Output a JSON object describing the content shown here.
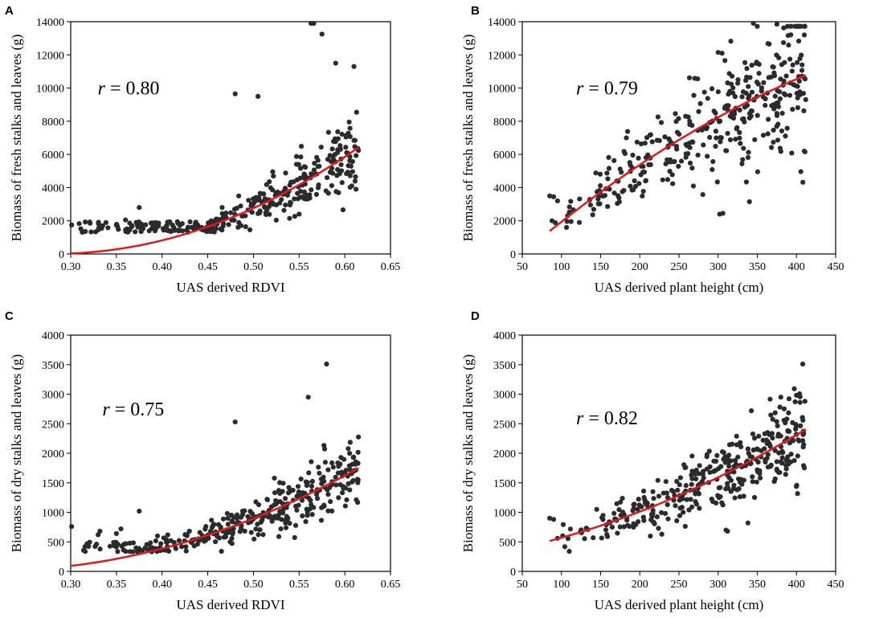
{
  "chart_data": [
    {
      "id": "A",
      "panel_label": "A",
      "type": "scatter",
      "xlabel": "UAS derived RDVI",
      "ylabel": "Biomass of fresh stalks and leaves (g)",
      "xlim": [
        0.3,
        0.65
      ],
      "ylim": [
        0,
        14000
      ],
      "xticks": [
        0.3,
        0.35,
        0.4,
        0.45,
        0.5,
        0.55,
        0.6,
        0.65
      ],
      "yticks": [
        0,
        2000,
        4000,
        6000,
        8000,
        10000,
        12000,
        14000
      ],
      "xtick_labels": [
        "0.30",
        "0.35",
        "0.40",
        "0.45",
        "0.50",
        "0.55",
        "0.60",
        "0.65"
      ],
      "ytick_labels": [
        "0",
        "2000",
        "4000",
        "6000",
        "8000",
        "10000",
        "12000",
        "14000"
      ],
      "annotation": {
        "var": "r",
        "text": " = 0.80",
        "x": 0.305,
        "y": 10000
      },
      "fit": {
        "x_range": [
          0.3,
          0.615
        ],
        "coef": [
          57786,
          -32590,
          4607
        ]
      },
      "scatter": {
        "seed": 11,
        "n": 340,
        "x_range": [
          0.3,
          0.615
        ],
        "x_bias": 0.6,
        "noise_scale": 0.22,
        "floor": 1300,
        "extra_points": [
          [
            0.301,
            1750
          ],
          [
            0.33,
            1450
          ],
          [
            0.335,
            1700
          ],
          [
            0.35,
            1750
          ],
          [
            0.36,
            2050
          ],
          [
            0.375,
            2800
          ],
          [
            0.39,
            1600
          ],
          [
            0.48,
            9650
          ],
          [
            0.505,
            9500
          ],
          [
            0.563,
            13900
          ],
          [
            0.566,
            13900
          ],
          [
            0.575,
            13250
          ],
          [
            0.59,
            11500
          ],
          [
            0.61,
            11300
          ],
          [
            0.55,
            2400
          ],
          [
            0.54,
            2950
          ],
          [
            0.535,
            2950
          ]
        ]
      }
    },
    {
      "id": "B",
      "panel_label": "B",
      "type": "scatter",
      "xlabel": "UAS derived plant height (cm)",
      "ylabel": "Biomass of fresh stalks and leaves (g)",
      "xlim": [
        50,
        450
      ],
      "ylim": [
        0,
        14000
      ],
      "xticks": [
        50,
        100,
        150,
        200,
        250,
        300,
        350,
        400,
        450
      ],
      "yticks": [
        0,
        2000,
        4000,
        6000,
        8000,
        10000,
        12000,
        14000
      ],
      "xtick_labels": [
        "50",
        "100",
        "150",
        "200",
        "250",
        "300",
        "350",
        "400",
        "450"
      ],
      "ytick_labels": [
        "0",
        "2000",
        "4000",
        "6000",
        "8000",
        "10000",
        "12000",
        "14000"
      ],
      "annotation": {
        "var": "r",
        "text": " = 0.79",
        "x": 90,
        "y": 10000
      },
      "fit": {
        "x_range": [
          85,
          412
        ],
        "coef": [
          -0.0284,
          42.85,
          -2064
        ]
      },
      "scatter": {
        "seed": 23,
        "n": 350,
        "x_range": [
          85,
          412
        ],
        "x_bias": 0.55,
        "noise_scale": 0.25,
        "floor": 1300,
        "extra_points": [
          [
            85,
            3500
          ],
          [
            90,
            3450
          ],
          [
            95,
            3200
          ],
          [
            88,
            2000
          ],
          [
            345,
            13900
          ],
          [
            375,
            13850
          ],
          [
            410,
            13200
          ],
          [
            300,
            12150
          ],
          [
            305,
            12100
          ],
          [
            340,
            3150
          ],
          [
            302,
            2400
          ],
          [
            306,
            2450
          ],
          [
            410,
            6200
          ]
        ]
      }
    },
    {
      "id": "C",
      "panel_label": "C",
      "type": "scatter",
      "xlabel": "UAS derived RDVI",
      "ylabel": "Biomass of dry stalks and leaves (g)",
      "xlim": [
        0.3,
        0.65
      ],
      "ylim": [
        0,
        4000
      ],
      "xticks": [
        0.3,
        0.35,
        0.4,
        0.45,
        0.5,
        0.55,
        0.6,
        0.65
      ],
      "yticks": [
        0,
        500,
        1000,
        1500,
        2000,
        2500,
        3000,
        3500,
        4000
      ],
      "xtick_labels": [
        "0.30",
        "0.35",
        "0.40",
        "0.45",
        "0.50",
        "0.55",
        "0.60",
        "0.65"
      ],
      "ytick_labels": [
        "0",
        "500",
        "1000",
        "1500",
        "2000",
        "2500",
        "3000",
        "3500",
        "4000"
      ],
      "annotation": {
        "var": "r",
        "text": " = 0.75",
        "x": 0.31,
        "y": 2750
      },
      "fit": {
        "x_range": [
          0.3,
          0.615
        ],
        "coef": [
          10839,
          -4656,
          514
        ]
      },
      "scatter": {
        "seed": 37,
        "n": 340,
        "x_range": [
          0.3,
          0.615
        ],
        "x_bias": 0.6,
        "noise_scale": 0.22,
        "floor": 330,
        "extra_points": [
          [
            0.301,
            760
          ],
          [
            0.33,
            620
          ],
          [
            0.332,
            680
          ],
          [
            0.35,
            640
          ],
          [
            0.355,
            720
          ],
          [
            0.375,
            1020
          ],
          [
            0.395,
            600
          ],
          [
            0.48,
            2530
          ],
          [
            0.58,
            3510
          ],
          [
            0.56,
            2950
          ],
          [
            0.465,
            340
          ],
          [
            0.53,
            720
          ]
        ]
      }
    },
    {
      "id": "D",
      "panel_label": "D",
      "type": "scatter",
      "xlabel": "UAS derived plant height (cm)",
      "ylabel": "Biomass of dry stalks and leaves (g)",
      "xlim": [
        50,
        450
      ],
      "ylim": [
        0,
        4000
      ],
      "xticks": [
        50,
        100,
        150,
        200,
        250,
        300,
        350,
        400,
        450
      ],
      "yticks": [
        0,
        500,
        1000,
        1500,
        2000,
        2500,
        3000,
        3500,
        4000
      ],
      "xtick_labels": [
        "50",
        "100",
        "150",
        "200",
        "250",
        "300",
        "350",
        "400",
        "450"
      ],
      "ytick_labels": [
        "0",
        "500",
        "1000",
        "1500",
        "2000",
        "2500",
        "3000",
        "3500",
        "4000"
      ],
      "annotation": {
        "var": "r",
        "text": " = 0.82",
        "x": 90,
        "y": 2600
      },
      "fit": {
        "x_range": [
          85,
          412
        ],
        "coef": [
          0.00693,
          2.336,
          267
        ]
      },
      "scatter": {
        "seed": 53,
        "n": 350,
        "x_range": [
          85,
          412
        ],
        "x_bias": 0.55,
        "noise_scale": 0.2,
        "floor": 330,
        "extra_points": [
          [
            85,
            900
          ],
          [
            90,
            880
          ],
          [
            95,
            560
          ],
          [
            110,
            340
          ],
          [
            408,
            3510
          ],
          [
            400,
            2980
          ],
          [
            380,
            2950
          ],
          [
            310,
            700
          ],
          [
            312,
            680
          ],
          [
            338,
            820
          ],
          [
            145,
            1050
          ]
        ]
      }
    }
  ]
}
